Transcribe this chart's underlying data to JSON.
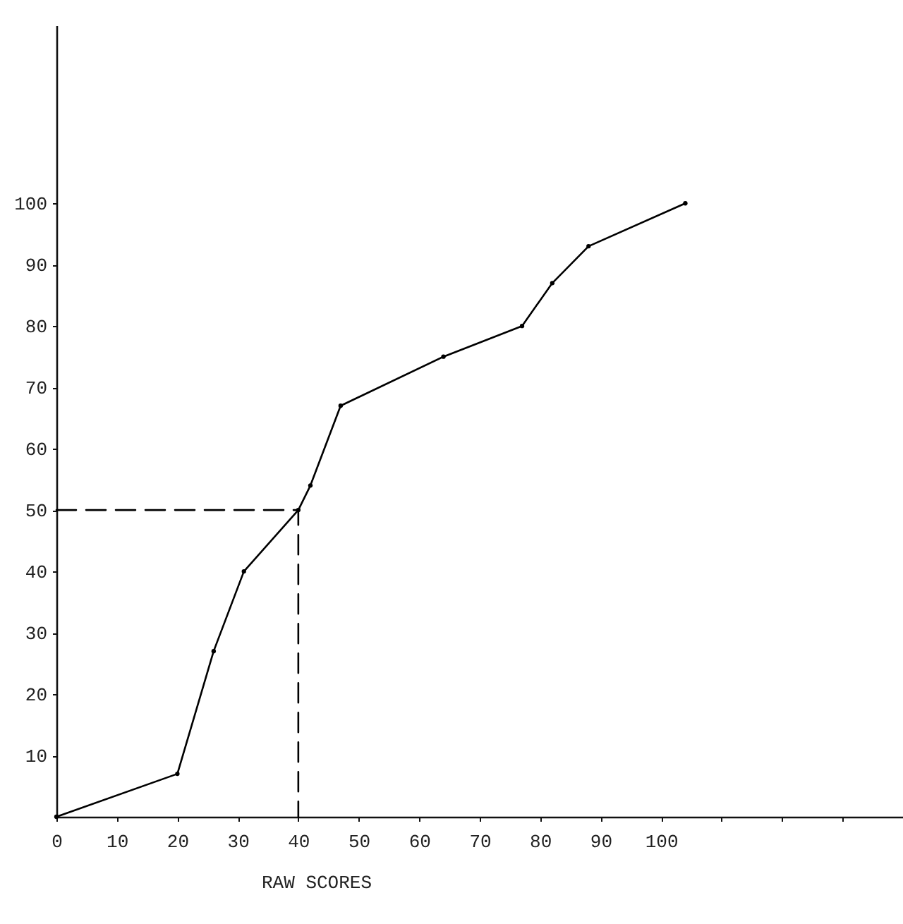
{
  "chart_data": {
    "type": "line",
    "xlabel": "RAW SCORES",
    "xlim": [
      0,
      140
    ],
    "ylim": [
      0,
      129
    ],
    "xticks": [
      0,
      10,
      20,
      30,
      40,
      50,
      60,
      70,
      80,
      90,
      100,
      {
        "value": 110,
        "label": null
      },
      {
        "value": 120,
        "label": null
      },
      {
        "value": 130,
        "label": null
      }
    ],
    "yticks": [
      10,
      20,
      30,
      40,
      50,
      60,
      70,
      80,
      90,
      100
    ],
    "marker": "circle",
    "series": [
      {
        "color": "#000000",
        "x": [
          0,
          20,
          26,
          31,
          40,
          42,
          47,
          64,
          77,
          82,
          88,
          104
        ],
        "values": [
          0,
          7,
          27,
          40,
          50,
          54,
          67,
          75,
          80,
          87,
          93,
          100
        ]
      },
      {
        "color": "#000000",
        "line_style": "dashed",
        "marker": "none",
        "x": [
          0,
          40,
          40
        ],
        "values": [
          50,
          50,
          0
        ]
      }
    ]
  }
}
